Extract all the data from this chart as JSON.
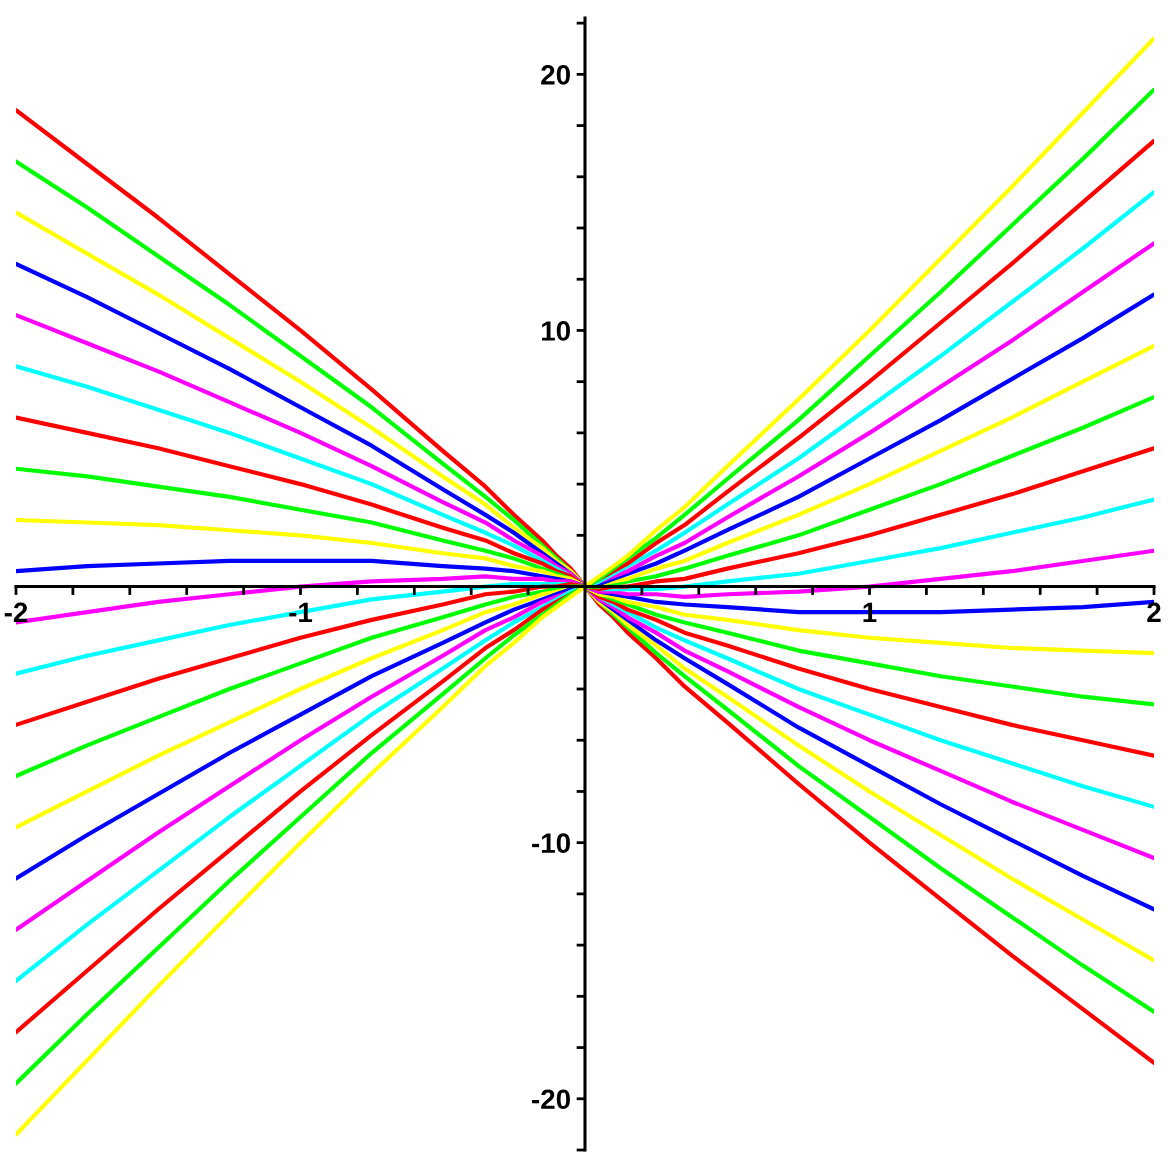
{
  "chart_data": {
    "type": "line",
    "x": [
      -2,
      -1.75,
      -1.5,
      -1.25,
      -1,
      -0.75,
      -0.5,
      -0.35,
      -0.25,
      -0.15,
      -0.1,
      -0.05,
      0,
      0.05,
      0.1,
      0.15,
      0.25,
      0.35,
      0.5,
      0.75,
      1,
      1.25,
      1.5,
      1.75,
      2
    ],
    "series": [
      {
        "color": "#ff0000",
        "values": [
          18.6,
          16.5,
          14.4,
          12.2,
          10.0,
          7.7,
          5.3,
          3.9,
          2.8,
          1.8,
          1.2,
          0.7,
          0,
          -0.7,
          -1.2,
          -1.8,
          -2.8,
          -3.9,
          -5.3,
          -7.7,
          -10.0,
          -12.2,
          -14.4,
          -16.5,
          -18.6
        ]
      },
      {
        "color": "#00ff00",
        "values": [
          16.6,
          14.8,
          12.9,
          11.0,
          9.0,
          7.0,
          4.8,
          3.5,
          2.6,
          1.6,
          1.1,
          0.6,
          0,
          -0.6,
          -1.1,
          -1.6,
          -2.6,
          -3.5,
          -4.8,
          -7.0,
          -9.0,
          -11.0,
          -12.9,
          -14.8,
          -16.6
        ]
      },
      {
        "color": "#ffff00",
        "values": [
          14.6,
          13.0,
          11.4,
          9.7,
          8.0,
          6.2,
          4.3,
          3.2,
          2.3,
          1.5,
          1.0,
          0.6,
          0,
          -0.6,
          -1.0,
          -1.5,
          -2.3,
          -3.2,
          -4.3,
          -6.2,
          -8.0,
          -9.7,
          -11.4,
          -13.0,
          -14.6
        ]
      },
      {
        "color": "#0000ff",
        "values": [
          12.6,
          11.3,
          9.9,
          8.5,
          7.0,
          5.5,
          3.8,
          2.8,
          2.1,
          1.3,
          0.9,
          0.5,
          0,
          -0.5,
          -0.9,
          -1.3,
          -2.1,
          -2.8,
          -3.8,
          -5.5,
          -7.0,
          -8.5,
          -9.9,
          -11.3,
          -12.6
        ]
      },
      {
        "color": "#ff00ff",
        "values": [
          10.6,
          9.5,
          8.4,
          7.2,
          6.0,
          4.7,
          3.3,
          2.5,
          1.8,
          1.2,
          0.8,
          0.5,
          0,
          -0.5,
          -0.8,
          -1.2,
          -1.8,
          -2.5,
          -3.3,
          -4.7,
          -6.0,
          -7.2,
          -8.4,
          -9.5,
          -10.6
        ]
      },
      {
        "color": "#00ffff",
        "values": [
          8.6,
          7.8,
          6.9,
          6.0,
          5.0,
          4.0,
          2.8,
          2.1,
          1.6,
          1.0,
          0.7,
          0.4,
          0,
          -0.4,
          -0.7,
          -1.0,
          -1.6,
          -2.1,
          -2.8,
          -4.0,
          -5.0,
          -6.0,
          -6.9,
          -7.8,
          -8.6
        ]
      },
      {
        "color": "#ff0000",
        "values": [
          6.6,
          6.0,
          5.4,
          4.7,
          4.0,
          3.2,
          2.3,
          1.8,
          1.3,
          0.9,
          0.6,
          0.4,
          0,
          -0.4,
          -0.6,
          -0.9,
          -1.3,
          -1.8,
          -2.3,
          -3.2,
          -4.0,
          -4.7,
          -5.4,
          -6.0,
          -6.6
        ]
      },
      {
        "color": "#00ff00",
        "values": [
          4.6,
          4.3,
          3.9,
          3.5,
          3.0,
          2.5,
          1.8,
          1.4,
          1.1,
          0.7,
          0.5,
          0.3,
          0,
          -0.3,
          -0.5,
          -0.7,
          -1.1,
          -1.4,
          -1.8,
          -2.5,
          -3.0,
          -3.5,
          -3.9,
          -4.3,
          -4.6
        ]
      },
      {
        "color": "#ffff00",
        "values": [
          2.6,
          2.5,
          2.4,
          2.2,
          2.0,
          1.7,
          1.3,
          1.1,
          0.8,
          0.6,
          0.4,
          0.3,
          0,
          -0.3,
          -0.4,
          -0.6,
          -0.8,
          -1.1,
          -1.3,
          -1.7,
          -2.0,
          -2.2,
          -2.4,
          -2.5,
          -2.6
        ]
      },
      {
        "color": "#0000ff",
        "values": [
          0.6,
          0.8,
          0.9,
          1.0,
          1.0,
          1.0,
          0.8,
          0.7,
          0.6,
          0.4,
          0.3,
          0.2,
          0,
          -0.2,
          -0.3,
          -0.4,
          -0.6,
          -0.7,
          -0.8,
          -1.0,
          -1.0,
          -1.0,
          -0.9,
          -0.8,
          -0.6
        ]
      },
      {
        "color": "#ff00ff",
        "values": [
          -1.4,
          -1.0,
          -0.6,
          -0.3,
          0.0,
          0.2,
          0.3,
          0.4,
          0.3,
          0.3,
          0.2,
          0.2,
          0,
          -0.2,
          -0.2,
          -0.3,
          -0.3,
          -0.4,
          -0.3,
          -0.2,
          0.0,
          0.3,
          0.6,
          1.0,
          1.4
        ]
      },
      {
        "color": "#00ffff",
        "values": [
          -3.4,
          -2.7,
          -2.1,
          -1.5,
          -1.0,
          -0.5,
          -0.2,
          0.0,
          0.1,
          0.1,
          0.1,
          0.1,
          0,
          -0.1,
          -0.1,
          -0.1,
          -0.1,
          0.0,
          0.2,
          0.5,
          1.0,
          1.5,
          2.1,
          2.7,
          3.4
        ]
      },
      {
        "color": "#ff0000",
        "values": [
          -5.4,
          -4.5,
          -3.6,
          -2.8,
          -2.0,
          -1.3,
          -0.7,
          -0.3,
          -0.2,
          0.0,
          0.0,
          0.1,
          0,
          -0.1,
          0.0,
          0.0,
          0.2,
          0.3,
          0.7,
          1.3,
          2.0,
          2.8,
          3.6,
          4.5,
          5.4
        ]
      },
      {
        "color": "#00ff00",
        "values": [
          -7.4,
          -6.2,
          -5.1,
          -4.0,
          -3.0,
          -2.0,
          -1.2,
          -0.7,
          -0.4,
          -0.2,
          -0.1,
          0.0,
          0,
          0.0,
          0.1,
          0.2,
          0.4,
          0.7,
          1.2,
          2.0,
          3.0,
          4.0,
          5.1,
          6.2,
          7.4
        ]
      },
      {
        "color": "#ffff00",
        "values": [
          -9.4,
          -8.0,
          -6.6,
          -5.3,
          -4.0,
          -2.8,
          -1.7,
          -1.0,
          -0.7,
          -0.3,
          -0.2,
          -0.1,
          0,
          0.1,
          0.2,
          0.3,
          0.7,
          1.0,
          1.7,
          2.8,
          4.0,
          5.3,
          6.6,
          8.0,
          9.4
        ]
      },
      {
        "color": "#0000ff",
        "values": [
          -11.4,
          -9.7,
          -8.1,
          -6.5,
          -5.0,
          -3.5,
          -2.2,
          -1.4,
          -0.9,
          -0.5,
          -0.3,
          -0.1,
          0,
          0.1,
          0.3,
          0.5,
          0.9,
          1.4,
          2.2,
          3.5,
          5.0,
          6.5,
          8.1,
          9.7,
          11.4
        ]
      },
      {
        "color": "#ff00ff",
        "values": [
          -13.4,
          -11.5,
          -9.6,
          -7.8,
          -6.0,
          -4.3,
          -2.7,
          -1.7,
          -1.2,
          -0.6,
          -0.4,
          -0.2,
          0,
          0.2,
          0.4,
          0.6,
          1.2,
          1.7,
          2.7,
          4.3,
          6.0,
          7.8,
          9.6,
          11.5,
          13.4
        ]
      },
      {
        "color": "#00ffff",
        "values": [
          -15.4,
          -13.2,
          -11.1,
          -9.0,
          -7.0,
          -5.0,
          -3.2,
          -2.1,
          -1.4,
          -0.8,
          -0.5,
          -0.2,
          0,
          0.2,
          0.5,
          0.8,
          1.4,
          2.1,
          3.2,
          5.0,
          7.0,
          9.0,
          11.1,
          13.2,
          15.4
        ]
      },
      {
        "color": "#ff0000",
        "values": [
          -17.4,
          -15.0,
          -12.6,
          -10.3,
          -8.0,
          -5.8,
          -3.7,
          -2.4,
          -1.7,
          -0.9,
          -0.6,
          -0.3,
          0,
          0.3,
          0.6,
          0.9,
          1.7,
          2.4,
          3.7,
          5.8,
          8.0,
          10.3,
          12.6,
          15.0,
          17.4
        ]
      },
      {
        "color": "#00ff00",
        "values": [
          -19.4,
          -16.7,
          -14.1,
          -11.5,
          -9.0,
          -6.5,
          -4.2,
          -2.8,
          -1.9,
          -1.1,
          -0.7,
          -0.3,
          0,
          0.3,
          0.7,
          1.1,
          1.9,
          2.8,
          4.2,
          6.5,
          9.0,
          11.5,
          14.1,
          16.7,
          19.4
        ]
      },
      {
        "color": "#ffff00",
        "values": [
          -21.4,
          -18.5,
          -15.6,
          -12.8,
          -10.0,
          -7.3,
          -4.7,
          -3.1,
          -2.2,
          -1.2,
          -0.8,
          -0.4,
          0,
          0.4,
          0.8,
          1.2,
          2.2,
          3.1,
          4.7,
          7.3,
          10.0,
          12.8,
          15.6,
          18.5,
          21.4
        ]
      }
    ],
    "xlim": [
      -2,
      2
    ],
    "ylim": [
      -22,
      22.2
    ],
    "xticks": [
      -2,
      {
        "value": -1.8,
        "label": null
      },
      {
        "value": -1.6,
        "label": null
      },
      {
        "value": -1.4,
        "label": null
      },
      {
        "value": -1.2,
        "label": null
      },
      -1,
      {
        "value": -0.8,
        "label": null
      },
      {
        "value": -0.6,
        "label": null
      },
      {
        "value": -0.4,
        "label": null
      },
      {
        "value": -0.2,
        "label": null
      },
      {
        "value": 0.2,
        "label": null
      },
      {
        "value": 0.4,
        "label": null
      },
      {
        "value": 0.6,
        "label": null
      },
      {
        "value": 0.8,
        "label": null
      },
      1,
      {
        "value": 1.2,
        "label": null
      },
      {
        "value": 1.4,
        "label": null
      },
      {
        "value": 1.6,
        "label": null
      },
      {
        "value": 1.8,
        "label": null
      },
      2
    ],
    "yticks": [
      {
        "value": -22,
        "label": null
      },
      -20,
      {
        "value": -18,
        "label": null
      },
      {
        "value": -16,
        "label": null
      },
      {
        "value": -14,
        "label": null
      },
      {
        "value": -12,
        "label": null
      },
      -10,
      {
        "value": -8,
        "label": null
      },
      {
        "value": -6,
        "label": null
      },
      {
        "value": -4,
        "label": null
      },
      {
        "value": -2,
        "label": null
      },
      {
        "value": 2,
        "label": null
      },
      {
        "value": 4,
        "label": null
      },
      {
        "value": 6,
        "label": null
      },
      {
        "value": 8,
        "label": null
      },
      10,
      {
        "value": 12,
        "label": null
      },
      {
        "value": 14,
        "label": null
      },
      {
        "value": 16,
        "label": null
      },
      {
        "value": 18,
        "label": null
      },
      20,
      {
        "value": 22,
        "label": null
      }
    ]
  }
}
